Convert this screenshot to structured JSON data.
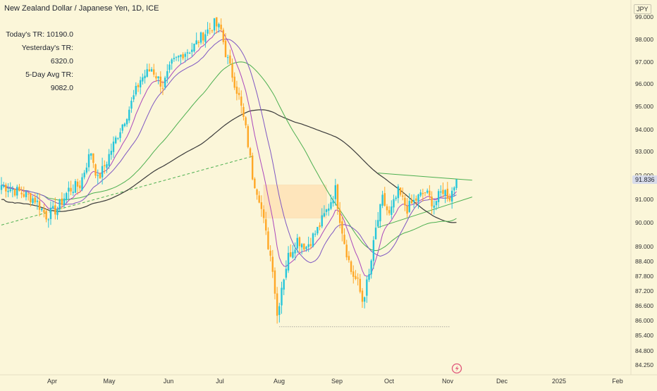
{
  "header": {
    "title": "New Zealand Dollar / Japanese Yen, 1D, ICE",
    "currency": "JPY",
    "last_price": "91.836"
  },
  "stats": {
    "today_tr": "Today's TR: 10190.0",
    "yesterday_tr": "Yesterday's TR: 6320.0",
    "five_day_tr": "5-Day Avg TR: 9082.0"
  },
  "colors": {
    "background": "#fbf6d9",
    "up": "#26c6da",
    "down": "#ffa726",
    "sma_long": "#3a3a3a",
    "sma_mid": "#4caf50",
    "sma_short": "#7e57c2",
    "ema_fast": "#ab47bc",
    "trendline": "#4caf50",
    "zone": "#ffe0b2"
  },
  "chart_data": {
    "type": "candlestick",
    "x_labels": [
      "Apr",
      "May",
      "Jun",
      "Jul",
      "Aug",
      "Sep",
      "Oct",
      "Nov",
      "Dec",
      "2025",
      "Feb"
    ],
    "y_ticks": [
      99.0,
      98.0,
      97.0,
      96.0,
      95.0,
      94.0,
      93.0,
      92.0,
      91.0,
      90.0,
      89.0,
      88.4,
      87.8,
      87.2,
      86.6,
      86.0,
      85.4,
      84.8,
      84.25
    ],
    "y_tick_labels": [
      "99.000",
      "98.000",
      "97.000",
      "96.000",
      "95.000",
      "94.000",
      "93.000",
      "92.000",
      "91.000",
      "90.000",
      "89.000",
      "88.400",
      "87.800",
      "87.200",
      "86.600",
      "86.000",
      "85.400",
      "84.800",
      "84.250"
    ],
    "ylim": [
      84.0,
      99.5
    ],
    "close_anchors": [
      [
        0,
        91.6
      ],
      [
        8,
        91.3
      ],
      [
        15,
        91.0
      ],
      [
        20,
        90.3
      ],
      [
        25,
        90.6
      ],
      [
        30,
        91.4
      ],
      [
        35,
        91.6
      ],
      [
        38,
        92.5
      ],
      [
        40,
        93.0
      ],
      [
        43,
        91.8
      ],
      [
        47,
        92.6
      ],
      [
        52,
        93.8
      ],
      [
        57,
        94.9
      ],
      [
        62,
        96.2
      ],
      [
        67,
        96.7
      ],
      [
        72,
        95.9
      ],
      [
        76,
        96.9
      ],
      [
        81,
        97.4
      ],
      [
        85,
        97.6
      ],
      [
        90,
        98.2
      ],
      [
        95,
        98.7
      ],
      [
        98,
        98.4
      ],
      [
        100,
        97.4
      ],
      [
        103,
        96.4
      ],
      [
        106,
        95.4
      ],
      [
        109,
        94.0
      ],
      [
        112,
        92.0
      ],
      [
        115,
        91.1
      ],
      [
        118,
        89.5
      ],
      [
        121,
        88.2
      ],
      [
        123,
        86.2
      ],
      [
        125,
        87.4
      ],
      [
        128,
        88.6
      ],
      [
        132,
        89.3
      ],
      [
        136,
        89.0
      ],
      [
        141,
        89.7
      ],
      [
        145,
        90.5
      ],
      [
        149,
        91.4
      ],
      [
        151,
        90.2
      ],
      [
        153,
        89.2
      ],
      [
        156,
        88.0
      ],
      [
        159,
        87.5
      ],
      [
        161,
        86.8
      ],
      [
        164,
        87.8
      ],
      [
        167,
        89.7
      ],
      [
        170,
        91.0
      ],
      [
        173,
        90.3
      ],
      [
        177,
        91.3
      ],
      [
        181,
        90.6
      ],
      [
        185,
        91.0
      ],
      [
        189,
        91.3
      ],
      [
        193,
        90.8
      ],
      [
        197,
        91.4
      ],
      [
        200,
        91.1
      ],
      [
        203,
        91.836
      ]
    ],
    "candle_count": 204,
    "indicators": [
      {
        "kind": "sma_long",
        "period": 200
      },
      {
        "kind": "sma_mid",
        "period": 50
      },
      {
        "kind": "sma_short",
        "period": 20
      },
      {
        "kind": "ema_fast",
        "period": 10
      }
    ],
    "annotations": {
      "channel_upper": [
        [
          168,
          92.1
        ],
        [
          210,
          91.8
        ]
      ],
      "channel_lower": [
        [
          168,
          89.8
        ],
        [
          210,
          91.1
        ]
      ],
      "support_line": [
        [
          0,
          89.9
        ],
        [
          112,
          92.8
        ]
      ],
      "support_low": [
        [
          124,
          85.75
        ],
        [
          200,
          85.75
        ]
      ],
      "zone": {
        "x": [
          117,
          145
        ],
        "y": [
          90.2,
          91.6
        ]
      }
    }
  }
}
